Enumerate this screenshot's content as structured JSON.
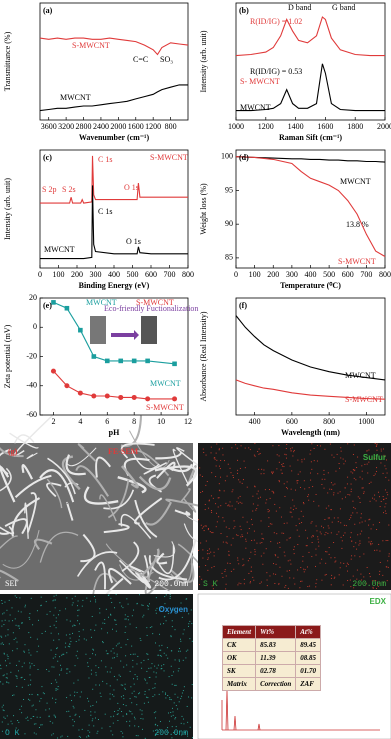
{
  "chart_data": [
    {
      "type": "line",
      "panel_label": "(a)",
      "x_label": "Wavenumber (cm⁻¹)",
      "y_label": "Transmittance (%)",
      "xlim": [
        3800,
        400
      ],
      "xticks": [
        3600,
        3200,
        2800,
        2400,
        2000,
        1600,
        1200,
        800
      ],
      "ylim": [
        0,
        100
      ],
      "x": [
        3800,
        3600,
        3400,
        3200,
        3000,
        2800,
        2600,
        2400,
        2200,
        2000,
        1800,
        1600,
        1400,
        1200,
        1100,
        1000,
        800,
        600,
        400
      ],
      "series": [
        {
          "name": "S-MWCNT",
          "color": "#e03a3a",
          "values": [
            70,
            69,
            70,
            69,
            70,
            70,
            69,
            69,
            70,
            69,
            68,
            67,
            64,
            60,
            56,
            62,
            66,
            65,
            64
          ]
        },
        {
          "name": "MWCNT",
          "color": "#000000",
          "values": [
            8,
            9,
            10,
            10,
            11,
            12,
            12,
            13,
            14,
            15,
            16,
            18,
            20,
            22,
            24,
            26,
            28,
            30,
            30
          ]
        }
      ],
      "annotations": [
        "C=C",
        "SO₃"
      ]
    },
    {
      "type": "line",
      "panel_label": "(b)",
      "x_label": "Raman Sift (cm⁻¹)",
      "y_label": "Intensity (arb. unit)",
      "xlim": [
        1000,
        2000
      ],
      "xticks": [
        1000,
        1200,
        1400,
        1600,
        1800,
        2000
      ],
      "ylim": [
        0,
        100
      ],
      "x": [
        1000,
        1100,
        1200,
        1250,
        1300,
        1340,
        1380,
        1420,
        1480,
        1540,
        1580,
        1600,
        1640,
        1700,
        1800,
        1900,
        2000
      ],
      "series": [
        {
          "name": "S- MWCNT",
          "color": "#e03a3a",
          "values": [
            55,
            56,
            58,
            62,
            72,
            86,
            76,
            68,
            66,
            72,
            88,
            86,
            70,
            60,
            56,
            55,
            55
          ]
        },
        {
          "name": "MWCNT",
          "color": "#000000",
          "values": [
            8,
            8,
            9,
            10,
            14,
            26,
            14,
            10,
            10,
            14,
            48,
            40,
            14,
            9,
            8,
            8,
            8
          ]
        }
      ],
      "annotations": [
        "D band",
        "G band",
        "R(ID/IG) = 1.02",
        "R(ID/IG) = 0.53"
      ]
    },
    {
      "type": "line",
      "panel_label": "(c)",
      "x_label": "Binding Energy (eV)",
      "y_label": "Intensity (arb. unit)",
      "xlim": [
        0,
        800
      ],
      "xticks": [
        0,
        100,
        200,
        300,
        400,
        500,
        600,
        700,
        800
      ],
      "ylim": [
        0,
        100
      ],
      "x": [
        0,
        100,
        160,
        168,
        176,
        220,
        228,
        236,
        280,
        284,
        290,
        300,
        400,
        500,
        525,
        532,
        540,
        600,
        700,
        800
      ],
      "series": [
        {
          "name": "S-MWCNT",
          "color": "#e03a3a",
          "values": [
            55,
            55,
            55,
            60,
            55,
            55,
            58,
            55,
            56,
            95,
            62,
            58,
            58,
            58,
            58,
            72,
            60,
            60,
            60,
            60
          ]
        },
        {
          "name": "MWCNT",
          "color": "#000000",
          "values": [
            8,
            8,
            8,
            8,
            8,
            8,
            8,
            8,
            9,
            70,
            20,
            14,
            12,
            12,
            12,
            18,
            13,
            12,
            12,
            12
          ]
        }
      ],
      "annotations": [
        "C 1s",
        "O 1s",
        "S 2p",
        "S 2s",
        "C 1s",
        "O 1s"
      ]
    },
    {
      "type": "line",
      "panel_label": "(d)",
      "x_label": "Temperature (⁰C)",
      "y_label": "Weight loss (%)",
      "xlim": [
        0,
        800
      ],
      "xticks": [
        0,
        100,
        200,
        300,
        400,
        500,
        600,
        700,
        800
      ],
      "ylim": [
        83.5,
        101
      ],
      "yticks": [
        85,
        90,
        95,
        100
      ],
      "x": [
        0,
        100,
        200,
        300,
        350,
        400,
        450,
        500,
        550,
        600,
        650,
        700,
        750,
        800
      ],
      "series": [
        {
          "name": "MWCNT",
          "color": "#000000",
          "values": [
            100,
            99.9,
            99.8,
            99.7,
            99.7,
            99.6,
            99.6,
            99.5,
            99.5,
            99.4,
            99.4,
            99.3,
            99.3,
            99.2
          ]
        },
        {
          "name": "S-MWCNT",
          "color": "#e03a3a",
          "values": [
            100,
            99.9,
            99.6,
            99,
            97.8,
            96.8,
            96.3,
            95.8,
            95,
            93.5,
            91.5,
            88.5,
            86,
            85.2
          ]
        }
      ],
      "annotations": [
        "13.8 %"
      ]
    },
    {
      "type": "line",
      "panel_label": "(e)",
      "x_label": "pH",
      "y_label": "Zeta potential (mV)",
      "xlim": [
        1,
        12
      ],
      "xticks": [
        2,
        4,
        6,
        8,
        10,
        12
      ],
      "ylim": [
        -60,
        20
      ],
      "yticks": [
        -60,
        -40,
        -20,
        0,
        20
      ],
      "x": [
        2,
        3,
        4,
        5,
        6,
        7,
        8,
        9,
        11
      ],
      "series": [
        {
          "name": "MWCNT",
          "color": "#1a9e9e",
          "marker": "square",
          "values": [
            17,
            13,
            -2,
            -20,
            -23,
            -23,
            -23,
            -23,
            -25
          ]
        },
        {
          "name": "S-MWCNT",
          "color": "#e03a3a",
          "marker": "circle",
          "values": [
            -30,
            -40,
            -45,
            -47,
            -47,
            -48,
            -48,
            -49,
            -49
          ]
        }
      ],
      "annotations": [
        "MWCNT",
        "S-MWCNT",
        "Eco-friendly Fuctionalization"
      ]
    },
    {
      "type": "line",
      "panel_label": "(f)",
      "x_label": "Wavelength (nm)",
      "y_label": "Absorbance (Real Intensity)",
      "xlim": [
        300,
        1100
      ],
      "xticks": [
        400,
        600,
        800,
        1000
      ],
      "ylim": [
        0,
        100
      ],
      "x": [
        300,
        350,
        400,
        450,
        500,
        600,
        700,
        800,
        900,
        1000,
        1100
      ],
      "series": [
        {
          "name": "MWCNT",
          "color": "#000000",
          "values": [
            85,
            75,
            67,
            60,
            55,
            47,
            41,
            37,
            34,
            32,
            30
          ]
        },
        {
          "name": "S-MWCNT",
          "color": "#e03a3a",
          "values": [
            30,
            27,
            25,
            23,
            22,
            19,
            17,
            16,
            15,
            14,
            13.5
          ]
        }
      ],
      "annotations": []
    }
  ],
  "images": {
    "sem": {
      "label": "(g)",
      "title": "FE-SEM",
      "corner": "SEI",
      "scale": "200.0nm"
    },
    "sulfur": {
      "title": "Sulfur",
      "corner": "S K",
      "scale": "200.0nm"
    },
    "oxygen": {
      "title": "Oxygen",
      "corner": "O K",
      "scale": "200.0nm"
    },
    "edx": {
      "title": "EDX",
      "table": {
        "header": [
          "Element",
          "Wt%",
          "At%"
        ],
        "rows": [
          [
            "CK",
            "85.83",
            "89.45"
          ],
          [
            "OK",
            "11.39",
            "08.85"
          ],
          [
            "SK",
            "02.78",
            "01.70"
          ],
          [
            "Matrix",
            "Correction",
            "ZAF"
          ]
        ]
      }
    }
  }
}
